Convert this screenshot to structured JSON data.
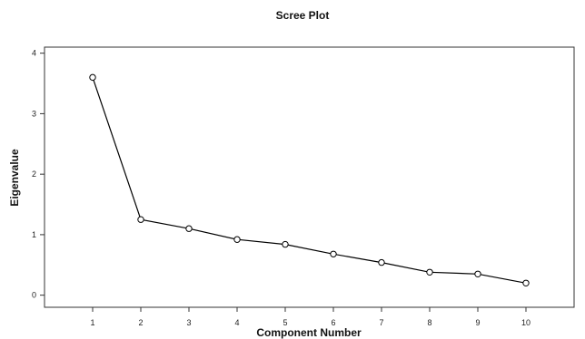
{
  "chart_data": {
    "type": "line",
    "title": "Scree Plot",
    "xlabel": "Component Number",
    "ylabel": "Eigenvalue",
    "x": [
      1,
      2,
      3,
      4,
      5,
      6,
      7,
      8,
      9,
      10
    ],
    "x_tick_labels": [
      "1",
      "2",
      "3",
      "4",
      "5",
      "6",
      "7",
      "8",
      "9",
      "10"
    ],
    "y_tick_labels": [
      "0",
      "1",
      "2",
      "3",
      "4"
    ],
    "series": [
      {
        "values": [
          3.6,
          1.25,
          1.1,
          0.92,
          0.84,
          0.68,
          0.54,
          0.38,
          0.35,
          0.2
        ]
      }
    ],
    "xlim": [
      0,
      11
    ],
    "ylim": [
      -0.2,
      4.1
    ],
    "y_ticks": [
      0,
      1,
      2,
      3,
      4
    ],
    "grid": false,
    "marker": "open-circle",
    "line_color": "#000000"
  }
}
